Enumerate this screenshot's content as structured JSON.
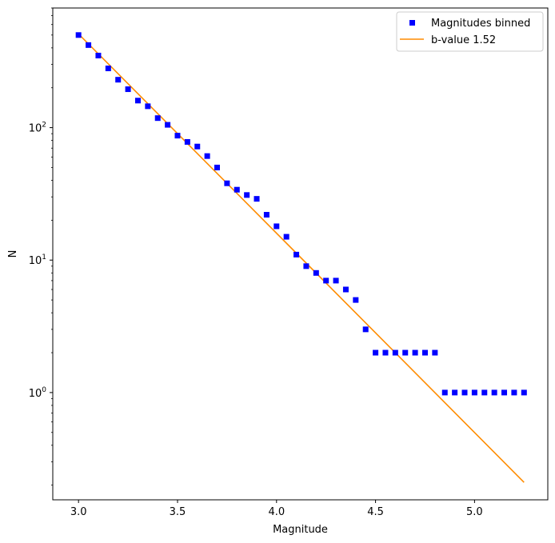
{
  "chart_data": {
    "type": "scatter",
    "xlabel": "Magnitude",
    "ylabel": "N",
    "xlim": [
      2.87,
      5.37
    ],
    "ylim": [
      0.155,
      800
    ],
    "yscale": "log",
    "grid": false,
    "legend_position": "top-right",
    "x_ticks": [
      3.0,
      3.5,
      4.0,
      4.5,
      5.0
    ],
    "x_tick_labels": [
      "3.0",
      "3.5",
      "4.0",
      "4.5",
      "5.0"
    ],
    "y_major_ticks": [
      1,
      10,
      100
    ],
    "y_tick_labels": [
      {
        "base": "10",
        "exp": "0"
      },
      {
        "base": "10",
        "exp": "1"
      },
      {
        "base": "10",
        "exp": "2"
      }
    ],
    "series": [
      {
        "name": "Magnitudes binned",
        "type": "scatter",
        "marker": "square",
        "color": "#0000ff",
        "points": [
          [
            3.0,
            500
          ],
          [
            3.05,
            420
          ],
          [
            3.1,
            350
          ],
          [
            3.15,
            280
          ],
          [
            3.2,
            230
          ],
          [
            3.25,
            195
          ],
          [
            3.3,
            160
          ],
          [
            3.35,
            145
          ],
          [
            3.4,
            118
          ],
          [
            3.45,
            105
          ],
          [
            3.5,
            87
          ],
          [
            3.55,
            78
          ],
          [
            3.6,
            72
          ],
          [
            3.65,
            61
          ],
          [
            3.7,
            50
          ],
          [
            3.75,
            38
          ],
          [
            3.8,
            34
          ],
          [
            3.85,
            31
          ],
          [
            3.9,
            29
          ],
          [
            3.95,
            22
          ],
          [
            4.0,
            18
          ],
          [
            4.05,
            15
          ],
          [
            4.1,
            11
          ],
          [
            4.15,
            9
          ],
          [
            4.2,
            8
          ],
          [
            4.25,
            7
          ],
          [
            4.3,
            7
          ],
          [
            4.35,
            6
          ],
          [
            4.4,
            5
          ],
          [
            4.45,
            3
          ],
          [
            4.5,
            2
          ],
          [
            4.55,
            2
          ],
          [
            4.6,
            2
          ],
          [
            4.65,
            2
          ],
          [
            4.7,
            2
          ],
          [
            4.75,
            2
          ],
          [
            4.8,
            2
          ],
          [
            4.85,
            1
          ],
          [
            4.9,
            1
          ],
          [
            4.95,
            1
          ],
          [
            5.0,
            1
          ],
          [
            5.05,
            1
          ],
          [
            5.1,
            1
          ],
          [
            5.15,
            1
          ],
          [
            5.2,
            1
          ],
          [
            5.25,
            1
          ]
        ]
      },
      {
        "name": "b-value 1.52",
        "type": "line",
        "color": "#ff8c00",
        "points": [
          [
            3.0,
            510
          ],
          [
            5.25,
            0.21
          ]
        ]
      }
    ]
  }
}
